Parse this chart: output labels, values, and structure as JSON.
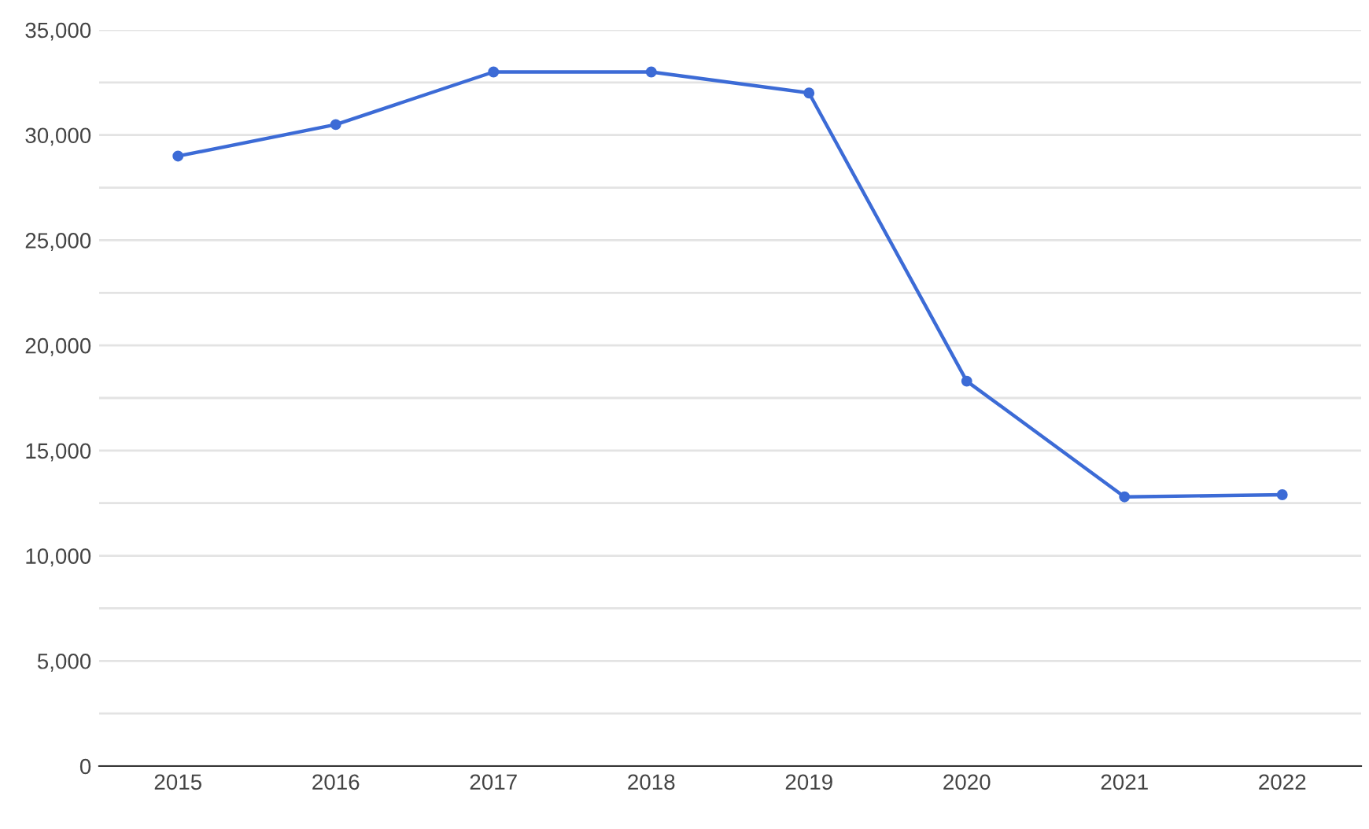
{
  "chart_data": {
    "type": "line",
    "categories": [
      "2015",
      "2016",
      "2017",
      "2018",
      "2019",
      "2020",
      "2021",
      "2022"
    ],
    "series": [
      {
        "color": "#3c6bd6",
        "values": [
          29000,
          30500,
          33000,
          33000,
          32000,
          18300,
          12800,
          12900
        ]
      }
    ],
    "ylim": [
      0,
      35000
    ],
    "yticks": [
      0,
      {
        "value": 2500,
        "label": null
      },
      {
        "value": 5000,
        "label": "5,000"
      },
      {
        "value": 7500,
        "label": null
      },
      {
        "value": 10000,
        "label": "10,000"
      },
      {
        "value": 12500,
        "label": null
      },
      {
        "value": 15000,
        "label": "15,000"
      },
      {
        "value": 17500,
        "label": null
      },
      {
        "value": 20000,
        "label": "20,000"
      },
      {
        "value": 22500,
        "label": null
      },
      {
        "value": 25000,
        "label": "25,000"
      },
      {
        "value": 27500,
        "label": null
      },
      {
        "value": 30000,
        "label": "30,000"
      },
      {
        "value": 32500,
        "label": null
      },
      {
        "value": 35000,
        "label": "35,000"
      }
    ],
    "grid": "y",
    "marker": "circle",
    "line_style": "solid"
  }
}
